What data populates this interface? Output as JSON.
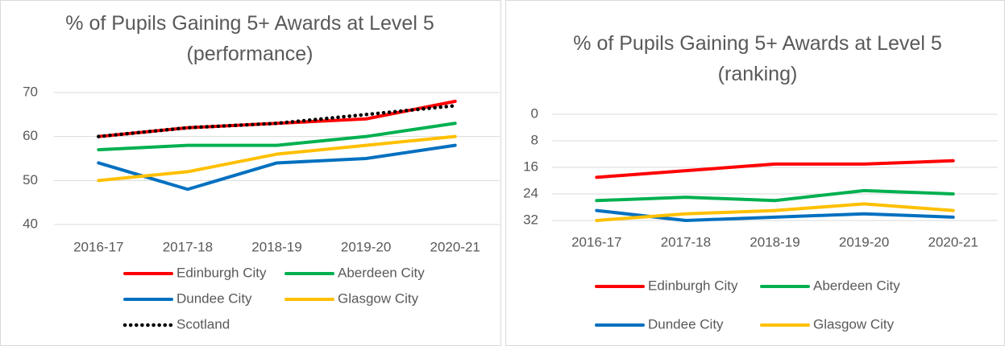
{
  "chart_data": [
    {
      "type": "line",
      "title": "% of Pupils Gaining 5+ Awards at Level 5 (performance)",
      "categories": [
        "2016-17",
        "2017-18",
        "2018-19",
        "2019-20",
        "2020-21"
      ],
      "ylim": [
        40,
        70
      ],
      "yticks": [
        40,
        50,
        60,
        70
      ],
      "grid": true,
      "legend": "bottom",
      "series": [
        {
          "name": "Edinburgh City",
          "color": "#ff0000",
          "values": [
            60,
            62,
            63,
            64,
            68
          ]
        },
        {
          "name": "Aberdeen City",
          "color": "#00b050",
          "values": [
            57,
            58,
            58,
            60,
            63
          ]
        },
        {
          "name": "Dundee City",
          "color": "#0070c0",
          "values": [
            54,
            48,
            54,
            55,
            58
          ]
        },
        {
          "name": "Glasgow City",
          "color": "#ffc000",
          "values": [
            50,
            52,
            56,
            58,
            60
          ]
        },
        {
          "name": "Scotland",
          "color": "#000000",
          "dotted": true,
          "values": [
            60,
            62,
            63,
            65,
            67
          ]
        }
      ]
    },
    {
      "type": "line",
      "title": "% of Pupils Gaining 5+ Awards at Level 5 (ranking)",
      "categories": [
        "2016-17",
        "2017-18",
        "2018-19",
        "2019-20",
        "2020-21"
      ],
      "ylim": [
        0,
        32
      ],
      "yticks": [
        0,
        8,
        16,
        24,
        32
      ],
      "inverted": true,
      "grid": true,
      "legend": "bottom",
      "series": [
        {
          "name": "Edinburgh City",
          "color": "#ff0000",
          "values": [
            19,
            17,
            15,
            15,
            14
          ]
        },
        {
          "name": "Aberdeen City",
          "color": "#00b050",
          "values": [
            26,
            25,
            26,
            23,
            24
          ]
        },
        {
          "name": "Dundee City",
          "color": "#0070c0",
          "values": [
            29,
            32,
            31,
            30,
            31
          ]
        },
        {
          "name": "Glasgow City",
          "color": "#ffc000",
          "values": [
            32,
            30,
            29,
            27,
            29
          ]
        }
      ]
    }
  ]
}
